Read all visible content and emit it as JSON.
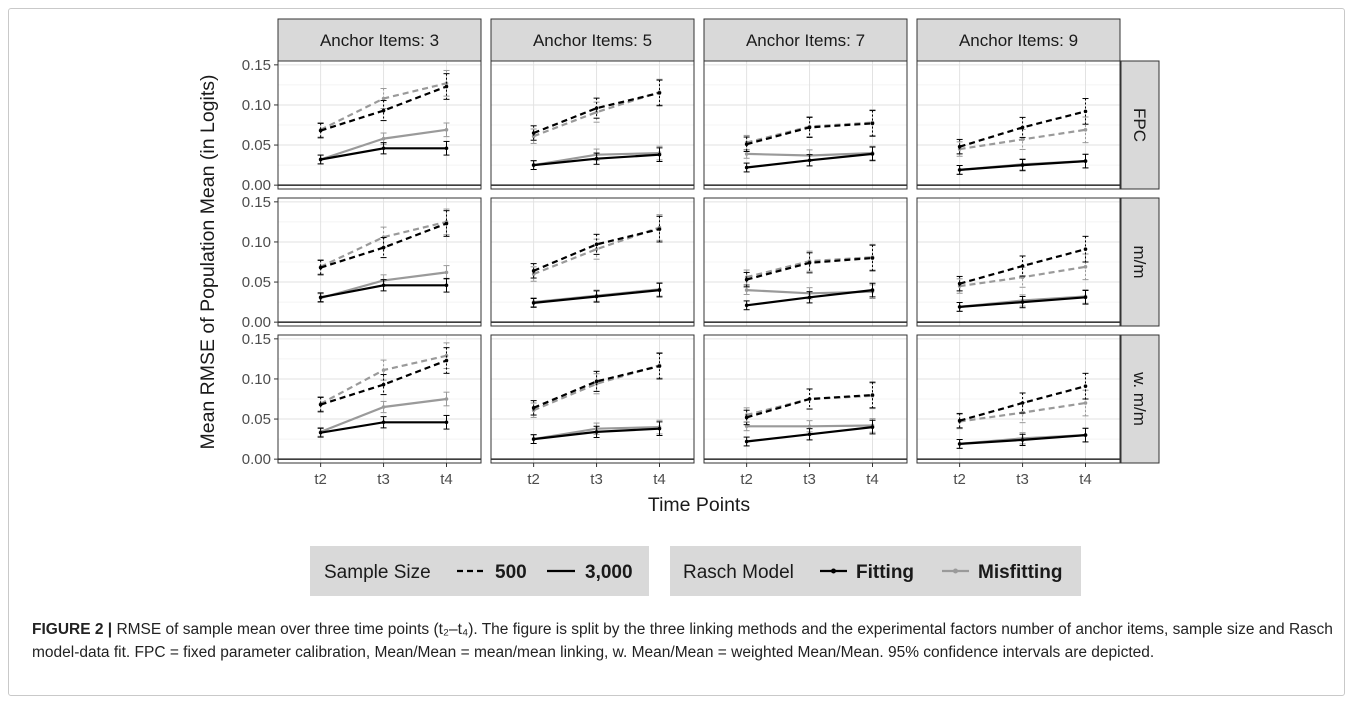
{
  "chart_data": {
    "type": "line",
    "facet_columns": [
      "Anchor Items: 3",
      "Anchor Items: 5",
      "Anchor Items: 7",
      "Anchor Items: 9"
    ],
    "facet_rows": [
      "FPC",
      "m/m",
      "w. m/m"
    ],
    "x": [
      "t2",
      "t3",
      "t4"
    ],
    "xlabel": "Time Points",
    "ylabel": "Mean RMSE of Population Mean (in Logits)",
    "ylim": [
      0,
      0.15
    ],
    "yticks": [
      "0.00",
      "0.05",
      "0.10",
      "0.15"
    ],
    "grid": true,
    "error_bars": "95% confidence intervals",
    "series_keys": [
      "500_fitting",
      "500_misfitting",
      "3000_fitting",
      "3000_misfitting"
    ],
    "series_styles": {
      "500_fitting": {
        "color": "#000000",
        "dash": "dashed"
      },
      "500_misfitting": {
        "color": "#9a9a9a",
        "dash": "dashed"
      },
      "3000_fitting": {
        "color": "#000000",
        "dash": "solid"
      },
      "3000_misfitting": {
        "color": "#9a9a9a",
        "dash": "solid"
      }
    },
    "panels": [
      {
        "row": 0,
        "col": 0,
        "500_fitting": [
          0.068,
          0.093,
          0.123
        ],
        "500_misfitting": [
          0.069,
          0.108,
          0.127
        ],
        "3000_fitting": [
          0.032,
          0.046,
          0.046
        ],
        "3000_misfitting": [
          0.032,
          0.058,
          0.069
        ]
      },
      {
        "row": 0,
        "col": 1,
        "500_fitting": [
          0.065,
          0.096,
          0.115
        ],
        "500_misfitting": [
          0.061,
          0.091,
          0.116
        ],
        "3000_fitting": [
          0.025,
          0.033,
          0.038
        ],
        "3000_misfitting": [
          0.025,
          0.038,
          0.04
        ]
      },
      {
        "row": 0,
        "col": 2,
        "500_fitting": [
          0.051,
          0.072,
          0.077
        ],
        "500_misfitting": [
          0.053,
          0.073,
          0.078
        ],
        "3000_fitting": [
          0.022,
          0.031,
          0.039
        ],
        "3000_misfitting": [
          0.039,
          0.037,
          0.04
        ]
      },
      {
        "row": 0,
        "col": 3,
        "500_fitting": [
          0.048,
          0.072,
          0.092
        ],
        "500_misfitting": [
          0.045,
          0.057,
          0.069
        ],
        "3000_fitting": [
          0.019,
          0.025,
          0.03
        ],
        "3000_misfitting": [
          0.019,
          0.026,
          0.03
        ]
      },
      {
        "row": 1,
        "col": 0,
        "500_fitting": [
          0.068,
          0.093,
          0.123
        ],
        "500_misfitting": [
          0.069,
          0.106,
          0.125
        ],
        "3000_fitting": [
          0.031,
          0.046,
          0.046
        ],
        "3000_misfitting": [
          0.03,
          0.052,
          0.062
        ]
      },
      {
        "row": 1,
        "col": 1,
        "500_fitting": [
          0.064,
          0.097,
          0.116
        ],
        "500_misfitting": [
          0.06,
          0.091,
          0.118
        ],
        "3000_fitting": [
          0.024,
          0.032,
          0.04
        ],
        "3000_misfitting": [
          0.025,
          0.033,
          0.041
        ]
      },
      {
        "row": 1,
        "col": 2,
        "500_fitting": [
          0.053,
          0.074,
          0.08
        ],
        "500_misfitting": [
          0.056,
          0.076,
          0.081
        ],
        "3000_fitting": [
          0.021,
          0.031,
          0.04
        ],
        "3000_misfitting": [
          0.04,
          0.036,
          0.038
        ]
      },
      {
        "row": 1,
        "col": 3,
        "500_fitting": [
          0.048,
          0.07,
          0.091
        ],
        "500_misfitting": [
          0.045,
          0.056,
          0.069
        ],
        "3000_fitting": [
          0.019,
          0.025,
          0.031
        ],
        "3000_misfitting": [
          0.019,
          0.027,
          0.032
        ]
      },
      {
        "row": 2,
        "col": 0,
        "500_fitting": [
          0.068,
          0.093,
          0.123
        ],
        "500_misfitting": [
          0.069,
          0.111,
          0.129
        ],
        "3000_fitting": [
          0.033,
          0.046,
          0.046
        ],
        "3000_misfitting": [
          0.034,
          0.065,
          0.075
        ]
      },
      {
        "row": 2,
        "col": 1,
        "500_fitting": [
          0.064,
          0.097,
          0.116
        ],
        "500_misfitting": [
          0.061,
          0.094,
          0.117
        ],
        "3000_fitting": [
          0.025,
          0.034,
          0.038
        ],
        "3000_misfitting": [
          0.025,
          0.038,
          0.04
        ]
      },
      {
        "row": 2,
        "col": 2,
        "500_fitting": [
          0.052,
          0.075,
          0.08
        ],
        "500_misfitting": [
          0.055,
          0.075,
          0.079
        ],
        "3000_fitting": [
          0.022,
          0.031,
          0.04
        ],
        "3000_misfitting": [
          0.041,
          0.041,
          0.042
        ]
      },
      {
        "row": 2,
        "col": 3,
        "500_fitting": [
          0.048,
          0.07,
          0.091
        ],
        "500_misfitting": [
          0.047,
          0.058,
          0.07
        ],
        "3000_fitting": [
          0.019,
          0.024,
          0.03
        ],
        "3000_misfitting": [
          0.019,
          0.026,
          0.03
        ]
      }
    ],
    "legend": {
      "position": "bottom",
      "sample_size": {
        "title": "Sample Size",
        "items": [
          {
            "label": "500",
            "dash": "dashed"
          },
          {
            "label": "3,000",
            "dash": "solid"
          }
        ]
      },
      "rasch_model": {
        "title": "Rasch Model",
        "items": [
          {
            "label": "Fitting",
            "color": "#000000"
          },
          {
            "label": "Misfitting",
            "color": "#9a9a9a"
          }
        ]
      }
    }
  },
  "caption": {
    "label": "FIGURE 2 |",
    "text": " RMSE of sample mean over three time points (t₂–t₄). The figure is split by the three linking methods and the experimental factors number of anchor items, sample size and Rasch model-data fit. FPC = fixed parameter calibration, Mean/Mean = mean/mean linking, w. Mean/Mean =  weighted Mean/Mean. 95% confidence intervals are depicted."
  }
}
